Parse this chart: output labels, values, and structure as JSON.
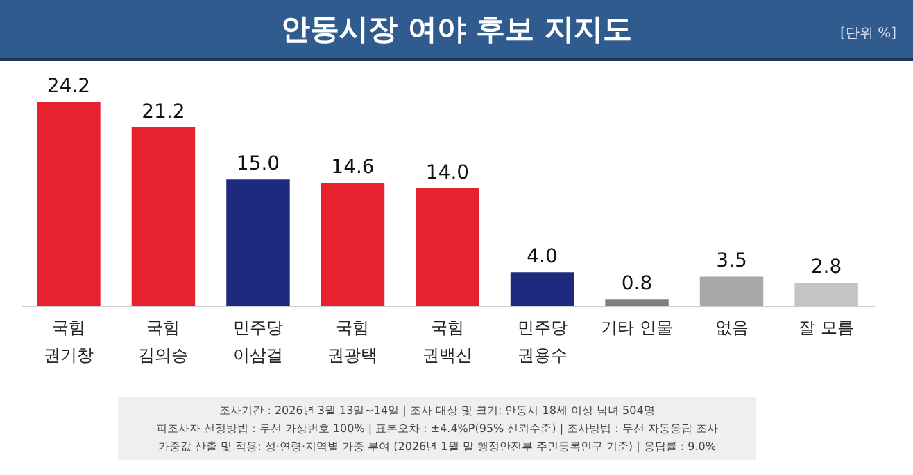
{
  "chart_data": {
    "type": "bar",
    "title": "안동시장 여야 후보 지지도",
    "subtitle": "[단위 %]",
    "categories": [
      "국힘\n권기창",
      "국힘\n김의승",
      "민주당\n이삼걸",
      "국힘\n권광택",
      "국힘\n권백신",
      "민주당\n권용수",
      "기타 인물",
      "없음",
      "잘 모름"
    ],
    "values": [
      24.2,
      21.2,
      15.0,
      14.6,
      14.0,
      4.0,
      0.8,
      3.5,
      2.8
    ],
    "value_labels": [
      "24.2",
      "21.2",
      "15.0",
      "14.6",
      "14.0",
      "4.0",
      "0.8",
      "3.5",
      "2.8"
    ],
    "colors": [
      "#e8212e",
      "#e8212e",
      "#1e2a7e",
      "#e8212e",
      "#e8212e",
      "#1e2a7e",
      "#7f7f7f",
      "#a8a8a8",
      "#c4c4c4"
    ],
    "annotations": [
      "조사기간 : 2026년 3월 13일~14일 | 조사 대상 및 크기: 안동시 18세 이상 남녀 504명",
      "피조사자 선정방법 : 무선 가상번호 100% | 표본오차 : ±4.4%P(95% 신뢰수준) | 조사방법 : 무선 자동응답 조사",
      "가중값 산출 및 적용: 성·연령·지역별 가중 부여 (2026년 1월 말 행정안전부 주민등록인구 기준) | 응답률 : 9.0%"
    ]
  }
}
